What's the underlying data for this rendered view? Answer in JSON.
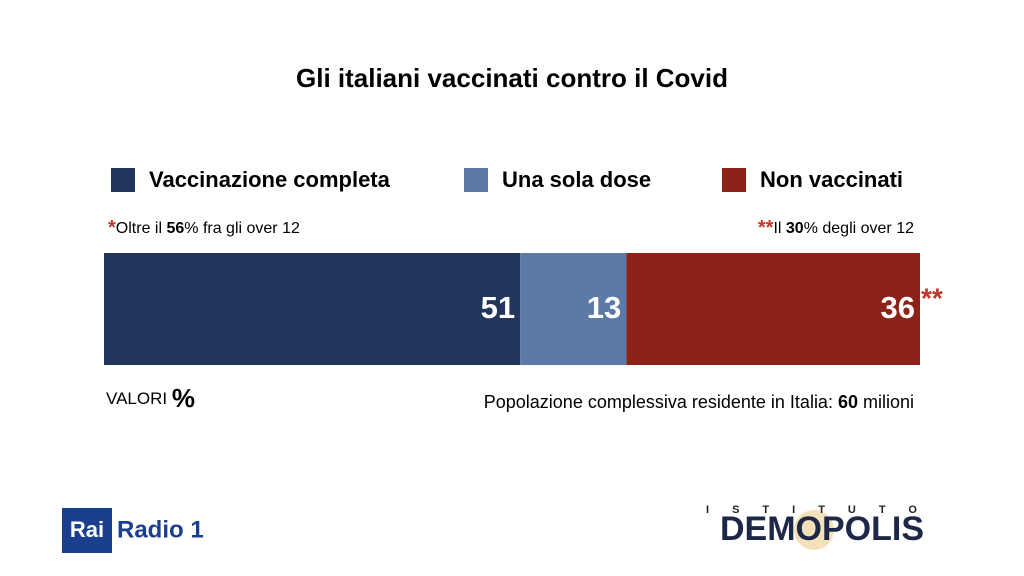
{
  "chart_data": {
    "type": "stacked-bar",
    "orientation": "horizontal",
    "title": "Gli italiani vaccinati contro il Covid",
    "xlim": [
      0,
      100
    ],
    "series": [
      {
        "name": "Vaccinazione completa",
        "color": "#22365c",
        "values": [
          51
        ],
        "marker": "*"
      },
      {
        "name": "Una sola dose",
        "color": "#5b7aa8",
        "values": [
          13
        ]
      },
      {
        "name": "Non vaccinati",
        "color": "#8b2318",
        "values": [
          36
        ],
        "marker": "**"
      }
    ],
    "notes": [
      {
        "marker": "*",
        "parts": [
          "Oltre il ",
          "56",
          "% fra gli over 12"
        ]
      },
      {
        "marker": "**",
        "parts": [
          "Il ",
          "30",
          "% degli over 12"
        ]
      }
    ],
    "unit_note": [
      "VALORI ",
      "%"
    ],
    "population_note": [
      "Popolazione complessiva residente in Italia: ",
      "60",
      " milioni"
    ]
  },
  "logos": {
    "rai": "Rai",
    "radio": "Radio 1",
    "institute_top": "ISTITUTO",
    "institute": "DEMOPOLIS"
  }
}
